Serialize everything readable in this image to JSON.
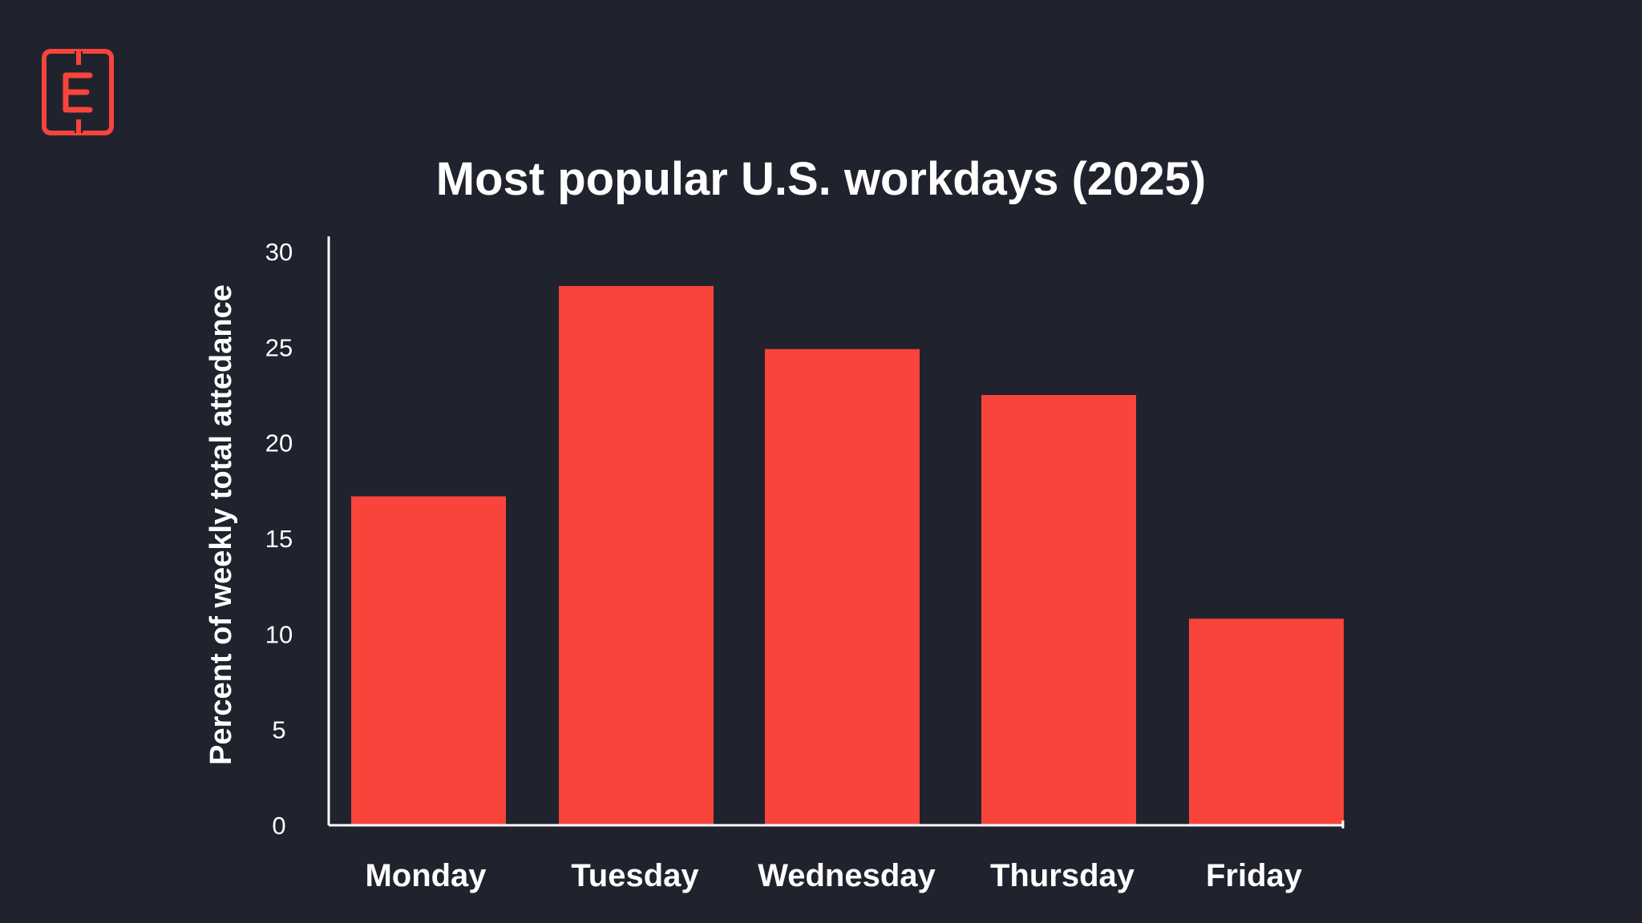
{
  "brand": {
    "logo_icon": "e-letter-logo-icon",
    "accent_color": "#f9443b",
    "background_color": "#20232e"
  },
  "chart_data": {
    "type": "bar",
    "title": "Most popular U.S. workdays (2025)",
    "xlabel": "",
    "ylabel": "Percent of weekly total attedance",
    "categories": [
      "Monday",
      "Tuesday",
      "Wednesday",
      "Thursday",
      "Friday"
    ],
    "values": [
      17.2,
      28.2,
      24.9,
      22.5,
      10.8
    ],
    "ylim": [
      0,
      30
    ],
    "yticks": [
      0,
      5,
      10,
      15,
      20,
      25,
      30
    ],
    "bar_color": "#f9443b",
    "grid": false,
    "legend": "none"
  }
}
